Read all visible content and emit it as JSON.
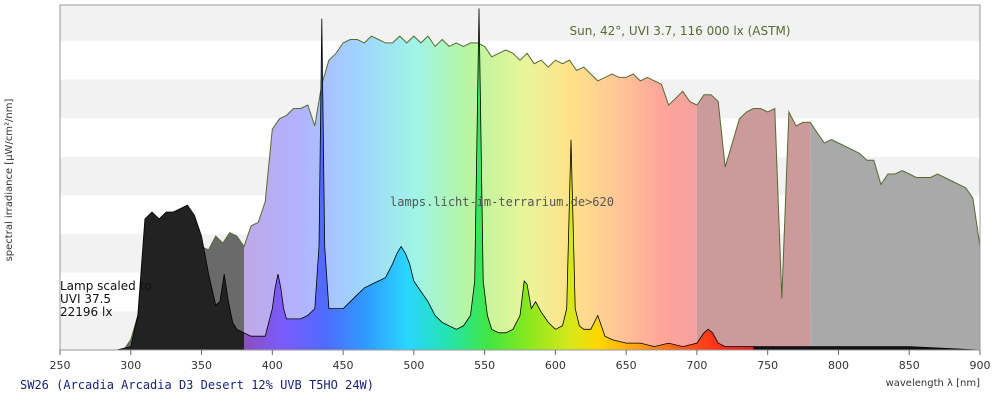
{
  "chart_data": {
    "type": "area",
    "title": "SW26 (Arcadia Arcadia D3 Desert 12% UVB T5HO 24W)",
    "xlabel": "wavelength λ [nm]",
    "ylabel": "spectral irradiance [µW/cm²/nm]",
    "xlim": [
      250,
      900
    ],
    "ylim": [
      0,
      100
    ],
    "x_ticks": [
      250,
      300,
      350,
      400,
      450,
      500,
      550,
      600,
      650,
      700,
      750,
      800,
      850,
      900
    ],
    "grid": "horizontal bands",
    "watermark": "lamps.licht-im-terrarium.de>620",
    "sun_annotation": "Sun, 42°, UVI 3.7, 116 000 lx (ASTM)",
    "lamp_annotation": [
      "Lamp scaled to",
      "UVI 37.5",
      "22196 lx"
    ],
    "series": [
      {
        "name": "Sun, 42°, UVI 3.7, 116 000 lx (ASTM)",
        "x": [
          295,
          300,
          305,
          310,
          315,
          320,
          325,
          330,
          335,
          340,
          345,
          350,
          355,
          360,
          365,
          370,
          375,
          380,
          385,
          390,
          395,
          400,
          405,
          410,
          415,
          420,
          425,
          430,
          435,
          440,
          445,
          450,
          455,
          460,
          465,
          470,
          475,
          480,
          485,
          490,
          495,
          500,
          505,
          510,
          515,
          520,
          525,
          530,
          535,
          540,
          545,
          550,
          555,
          560,
          565,
          570,
          575,
          580,
          585,
          590,
          595,
          600,
          605,
          610,
          615,
          620,
          625,
          630,
          635,
          640,
          645,
          650,
          655,
          660,
          665,
          670,
          675,
          680,
          685,
          690,
          695,
          700,
          705,
          710,
          715,
          720,
          725,
          730,
          735,
          740,
          745,
          750,
          755,
          760,
          765,
          770,
          775,
          780,
          785,
          790,
          795,
          800,
          805,
          810,
          815,
          820,
          825,
          830,
          835,
          840,
          845,
          850,
          855,
          860,
          865,
          870,
          875,
          880,
          885,
          890,
          895,
          900
        ],
        "y": [
          0,
          3,
          10,
          18,
          22,
          25,
          26,
          28,
          27,
          29,
          29,
          30,
          29,
          33,
          31,
          34,
          33,
          30,
          36,
          37,
          43,
          64,
          67,
          68,
          70,
          70,
          71,
          65,
          77,
          84,
          86,
          89,
          90,
          90,
          89,
          91,
          90,
          89,
          89,
          91,
          89,
          91,
          89,
          91,
          88,
          90,
          88,
          89,
          88,
          89,
          89,
          88,
          85,
          86,
          87,
          86,
          84,
          86,
          83,
          84,
          82,
          84,
          83,
          84,
          81,
          82,
          80,
          78,
          79,
          80,
          79,
          79,
          80,
          78,
          79,
          78,
          77,
          71,
          73,
          75,
          72,
          71,
          74,
          74,
          72,
          53,
          60,
          67,
          69,
          70,
          70,
          69,
          70,
          15,
          69,
          65,
          66,
          66,
          63,
          60,
          61,
          60,
          59,
          58,
          57,
          55,
          55,
          48,
          51,
          51,
          52,
          51,
          50,
          50,
          50,
          51,
          50,
          49,
          48,
          47,
          44,
          30
        ]
      },
      {
        "name": "Lamp scaled to",
        "x": [
          270,
          280,
          290,
          300,
          305,
          310,
          315,
          320,
          325,
          330,
          335,
          340,
          345,
          350,
          355,
          360,
          363,
          366,
          369,
          372,
          375,
          380,
          385,
          390,
          395,
          400,
          402,
          404,
          406,
          408,
          410,
          415,
          420,
          425,
          430,
          433,
          435,
          437,
          440,
          445,
          450,
          455,
          460,
          465,
          470,
          475,
          480,
          485,
          488,
          491,
          494,
          497,
          500,
          505,
          510,
          515,
          520,
          525,
          530,
          535,
          540,
          543,
          546,
          549,
          552,
          555,
          560,
          565,
          570,
          575,
          578,
          580,
          583,
          586,
          590,
          595,
          600,
          605,
          608,
          611,
          614,
          617,
          620,
          625,
          630,
          635,
          640,
          650,
          660,
          670,
          680,
          690,
          700,
          705,
          708,
          711,
          715,
          720,
          730,
          750,
          770,
          800,
          850,
          900
        ],
        "y": [
          0,
          0,
          0,
          1,
          10,
          38,
          40,
          38,
          40,
          40,
          41,
          42,
          39,
          33,
          22,
          13,
          14,
          22,
          14,
          8,
          6,
          5,
          4,
          4,
          4,
          12,
          18,
          22,
          18,
          12,
          9,
          9,
          9,
          10,
          12,
          30,
          96,
          30,
          12,
          12,
          12,
          14,
          16,
          18,
          19,
          20,
          21,
          25,
          28,
          30,
          28,
          25,
          20,
          17,
          14,
          10,
          8,
          7,
          6,
          7,
          10,
          20,
          99,
          20,
          10,
          6,
          5,
          5,
          6,
          10,
          20,
          19,
          12,
          14,
          11,
          8,
          6,
          7,
          12,
          61,
          12,
          7,
          6,
          6,
          10,
          4,
          3,
          2,
          2,
          1,
          2,
          1,
          2,
          5,
          6,
          5,
          2,
          1,
          1,
          1,
          1,
          1,
          1,
          0
        ]
      }
    ]
  },
  "colors": {
    "sun_line": "#556b2f",
    "lamp_line": "#000000",
    "band_light": "#f2f2f2",
    "band_white": "#ffffff",
    "uv_dark": "#222222",
    "ir_gray": "#a9a9a9"
  }
}
